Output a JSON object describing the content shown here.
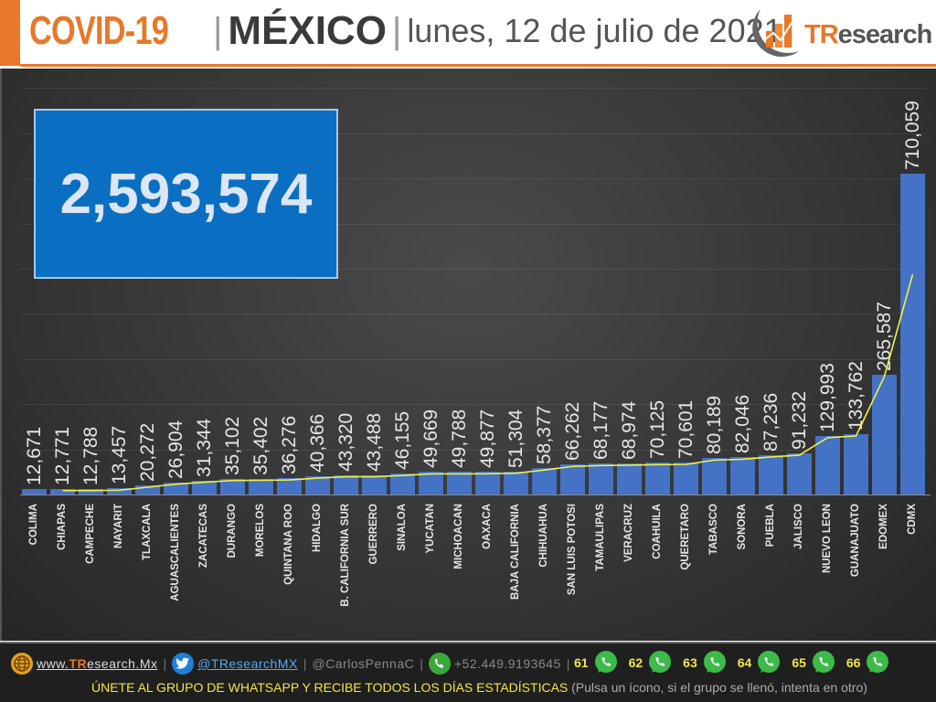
{
  "header": {
    "title_covid": "COVID-19",
    "separator": "|",
    "title_country": "MÉXICO",
    "date": "lunes, 12 de julio de 2021",
    "trailing_separator": "|",
    "logo": {
      "brand_tr": "TR",
      "brand_rest": "esearch"
    }
  },
  "total": {
    "value": "2,593,574"
  },
  "colors": {
    "bar": "#4472c4",
    "trend_line": "#f0f04a",
    "accent": "#e8782a",
    "total_box": "#0a6fc2"
  },
  "chart_data": {
    "type": "bar",
    "title": "COVID-19 | MÉXICO | lunes, 12 de julio de 2021",
    "xlabel": "",
    "ylabel": "",
    "ylim": [
      0,
      900000
    ],
    "grid": true,
    "legend": "none",
    "annotations": [
      "Total: 2,593,574"
    ],
    "overlay": "yellow trend line following bar heights",
    "categories": [
      "COLIMA",
      "CHIAPAS",
      "CAMPECHE",
      "NAYARIT",
      "TLAXCALA",
      "AGUASCALIENTES",
      "ZACATECAS",
      "DURANGO",
      "MORELOS",
      "QUINTANA ROO",
      "HIDALGO",
      "B. CALIFORNIA SUR",
      "GUERRERO",
      "SINALOA",
      "YUCATAN",
      "MICHOACAN",
      "OAXACA",
      "BAJA CALIFORNIA",
      "CHIHUAHUA",
      "SAN LUIS POTOSI",
      "TAMAULIPAS",
      "VERACRUZ",
      "COAHUILA",
      "QUERETARO",
      "TABASCO",
      "SONORA",
      "PUEBLA",
      "JALISCO",
      "NUEVO LEON",
      "GUANAJUATO",
      "EDOMEX",
      "CDMX"
    ],
    "values": [
      12671,
      12771,
      12788,
      13457,
      20272,
      26904,
      31344,
      35102,
      35402,
      36276,
      40366,
      43320,
      43488,
      46155,
      49669,
      49788,
      49877,
      51304,
      58377,
      66262,
      68177,
      68974,
      70125,
      70601,
      80189,
      82046,
      87236,
      91232,
      129993,
      133762,
      265587,
      710059
    ],
    "labels": [
      "12,671",
      "12,771",
      "12,788",
      "13,457",
      "20,272",
      "26,904",
      "31,344",
      "35,102",
      "35,402",
      "36,276",
      "40,366",
      "43,320",
      "43,488",
      "46,155",
      "49,669",
      "49,788",
      "49,877",
      "51,304",
      "58,377",
      "66,262",
      "68,177",
      "68,974",
      "70,125",
      "70,601",
      "80,189",
      "82,046",
      "87,236",
      "91,232",
      "129,993",
      "133,762",
      "265,587",
      "710,059"
    ]
  },
  "footer": {
    "website_prefix": "www.",
    "website_tr": "TR",
    "website_rest": "esearch.Mx",
    "twitter": "@TResearchMX",
    "twitter_alt": "@CarlosPennaC",
    "phone": "+52.449.9193645",
    "sep": "|",
    "whatsapp_groups": [
      "61",
      "62",
      "63",
      "64",
      "65",
      "66"
    ],
    "cta": "ÚNETE AL GRUPO DE WHATSAPP Y RECIBE TODOS LOS DÍAS ESTADÍSTICAS",
    "cta_note": "(Pulsa un ícono, si el grupo se llenó, intenta en otro)"
  }
}
